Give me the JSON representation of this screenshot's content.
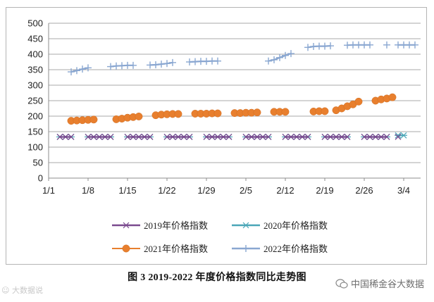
{
  "chart_data": {
    "type": "line",
    "ylim": [
      0,
      500
    ],
    "yticks": [
      0,
      50,
      100,
      150,
      200,
      250,
      300,
      350,
      400,
      450,
      500
    ],
    "xtick_labels": [
      "1/1",
      "1/8",
      "1/15",
      "1/22",
      "1/29",
      "2/5",
      "2/12",
      "2/19",
      "2/26",
      "3/4"
    ],
    "grid": "horizontal",
    "legend_position": "bottom",
    "series": [
      {
        "name": "2019年价格指数",
        "color": "#7b4a8f",
        "marker": "x",
        "x": [
          2,
          3,
          4,
          7,
          8,
          9,
          10,
          11,
          14,
          15,
          16,
          17,
          18,
          21,
          22,
          23,
          24,
          25,
          28,
          29,
          30,
          31,
          32,
          35,
          36,
          37,
          38,
          39,
          42,
          43,
          44,
          45,
          46,
          49,
          50,
          51,
          52,
          53,
          56,
          57,
          58,
          59,
          60,
          62
        ],
        "y": [
          133,
          133,
          133,
          133,
          133,
          133,
          133,
          133,
          133,
          133,
          133,
          133,
          133,
          133,
          133,
          133,
          133,
          133,
          133,
          133,
          133,
          133,
          133,
          133,
          133,
          133,
          133,
          133,
          133,
          133,
          133,
          133,
          133,
          133,
          133,
          133,
          133,
          133,
          133,
          133,
          133,
          133,
          133,
          133
        ]
      },
      {
        "name": "2020年价格指数",
        "color": "#4aa6b7",
        "marker": "asterisk",
        "x": [
          2,
          3,
          4,
          7,
          8,
          9,
          10,
          11,
          14,
          15,
          16,
          17,
          18,
          21,
          22,
          23,
          24,
          25,
          28,
          29,
          30,
          31,
          32,
          35,
          36,
          37,
          38,
          39,
          42,
          43,
          44,
          45,
          46,
          49,
          50,
          51,
          52,
          53,
          56,
          57,
          58,
          59,
          60,
          62,
          63
        ],
        "y": [
          133,
          133,
          133,
          133,
          133,
          133,
          133,
          133,
          133,
          133,
          133,
          133,
          133,
          133,
          133,
          133,
          133,
          133,
          133,
          133,
          133,
          133,
          133,
          133,
          133,
          133,
          133,
          133,
          133,
          133,
          133,
          133,
          133,
          133,
          133,
          133,
          133,
          133,
          133,
          133,
          133,
          133,
          133,
          138,
          138
        ]
      },
      {
        "name": "2021年价格指数",
        "color": "#e87f2e",
        "marker": "circle",
        "x": [
          4,
          5,
          6,
          7,
          8,
          12,
          13,
          14,
          15,
          16,
          19,
          20,
          21,
          22,
          23,
          26,
          27,
          28,
          29,
          30,
          33,
          34,
          35,
          36,
          37,
          40,
          41,
          42,
          47,
          48,
          49,
          51,
          52,
          53,
          54,
          55,
          58,
          59,
          60,
          61
        ],
        "y": [
          185,
          186,
          187,
          188,
          189,
          190,
          192,
          195,
          197,
          199,
          203,
          205,
          206,
          207,
          207,
          208,
          208,
          208,
          209,
          209,
          210,
          210,
          211,
          211,
          212,
          214,
          214,
          214,
          215,
          216,
          216,
          219,
          225,
          232,
          238,
          247,
          250,
          254,
          257,
          261
        ]
      },
      {
        "name": "2022年价格指数",
        "color": "#8aa7d1",
        "marker": "plus",
        "x": [
          4,
          5,
          6,
          7,
          11,
          12,
          13,
          14,
          15,
          18,
          19,
          20,
          21,
          22,
          25,
          26,
          27,
          28,
          29,
          30,
          39,
          40,
          41,
          42,
          43,
          46,
          47,
          48,
          49,
          50,
          53,
          54,
          55,
          56,
          57,
          60,
          62,
          63,
          64,
          65
        ],
        "y": [
          343,
          347,
          352,
          356,
          360,
          362,
          363,
          364,
          364,
          365,
          366,
          368,
          370,
          373,
          375,
          376,
          377,
          377,
          378,
          378,
          378,
          382,
          389,
          396,
          402,
          422,
          425,
          426,
          426,
          427,
          429,
          430,
          430,
          430,
          430,
          430,
          430,
          430,
          430,
          430
        ]
      }
    ]
  },
  "caption": "图 3    2019-2022 年度价格指数同比走势图",
  "watermark_left": "☺ 大数据说",
  "watermark_right": "中国稀金谷大数据"
}
